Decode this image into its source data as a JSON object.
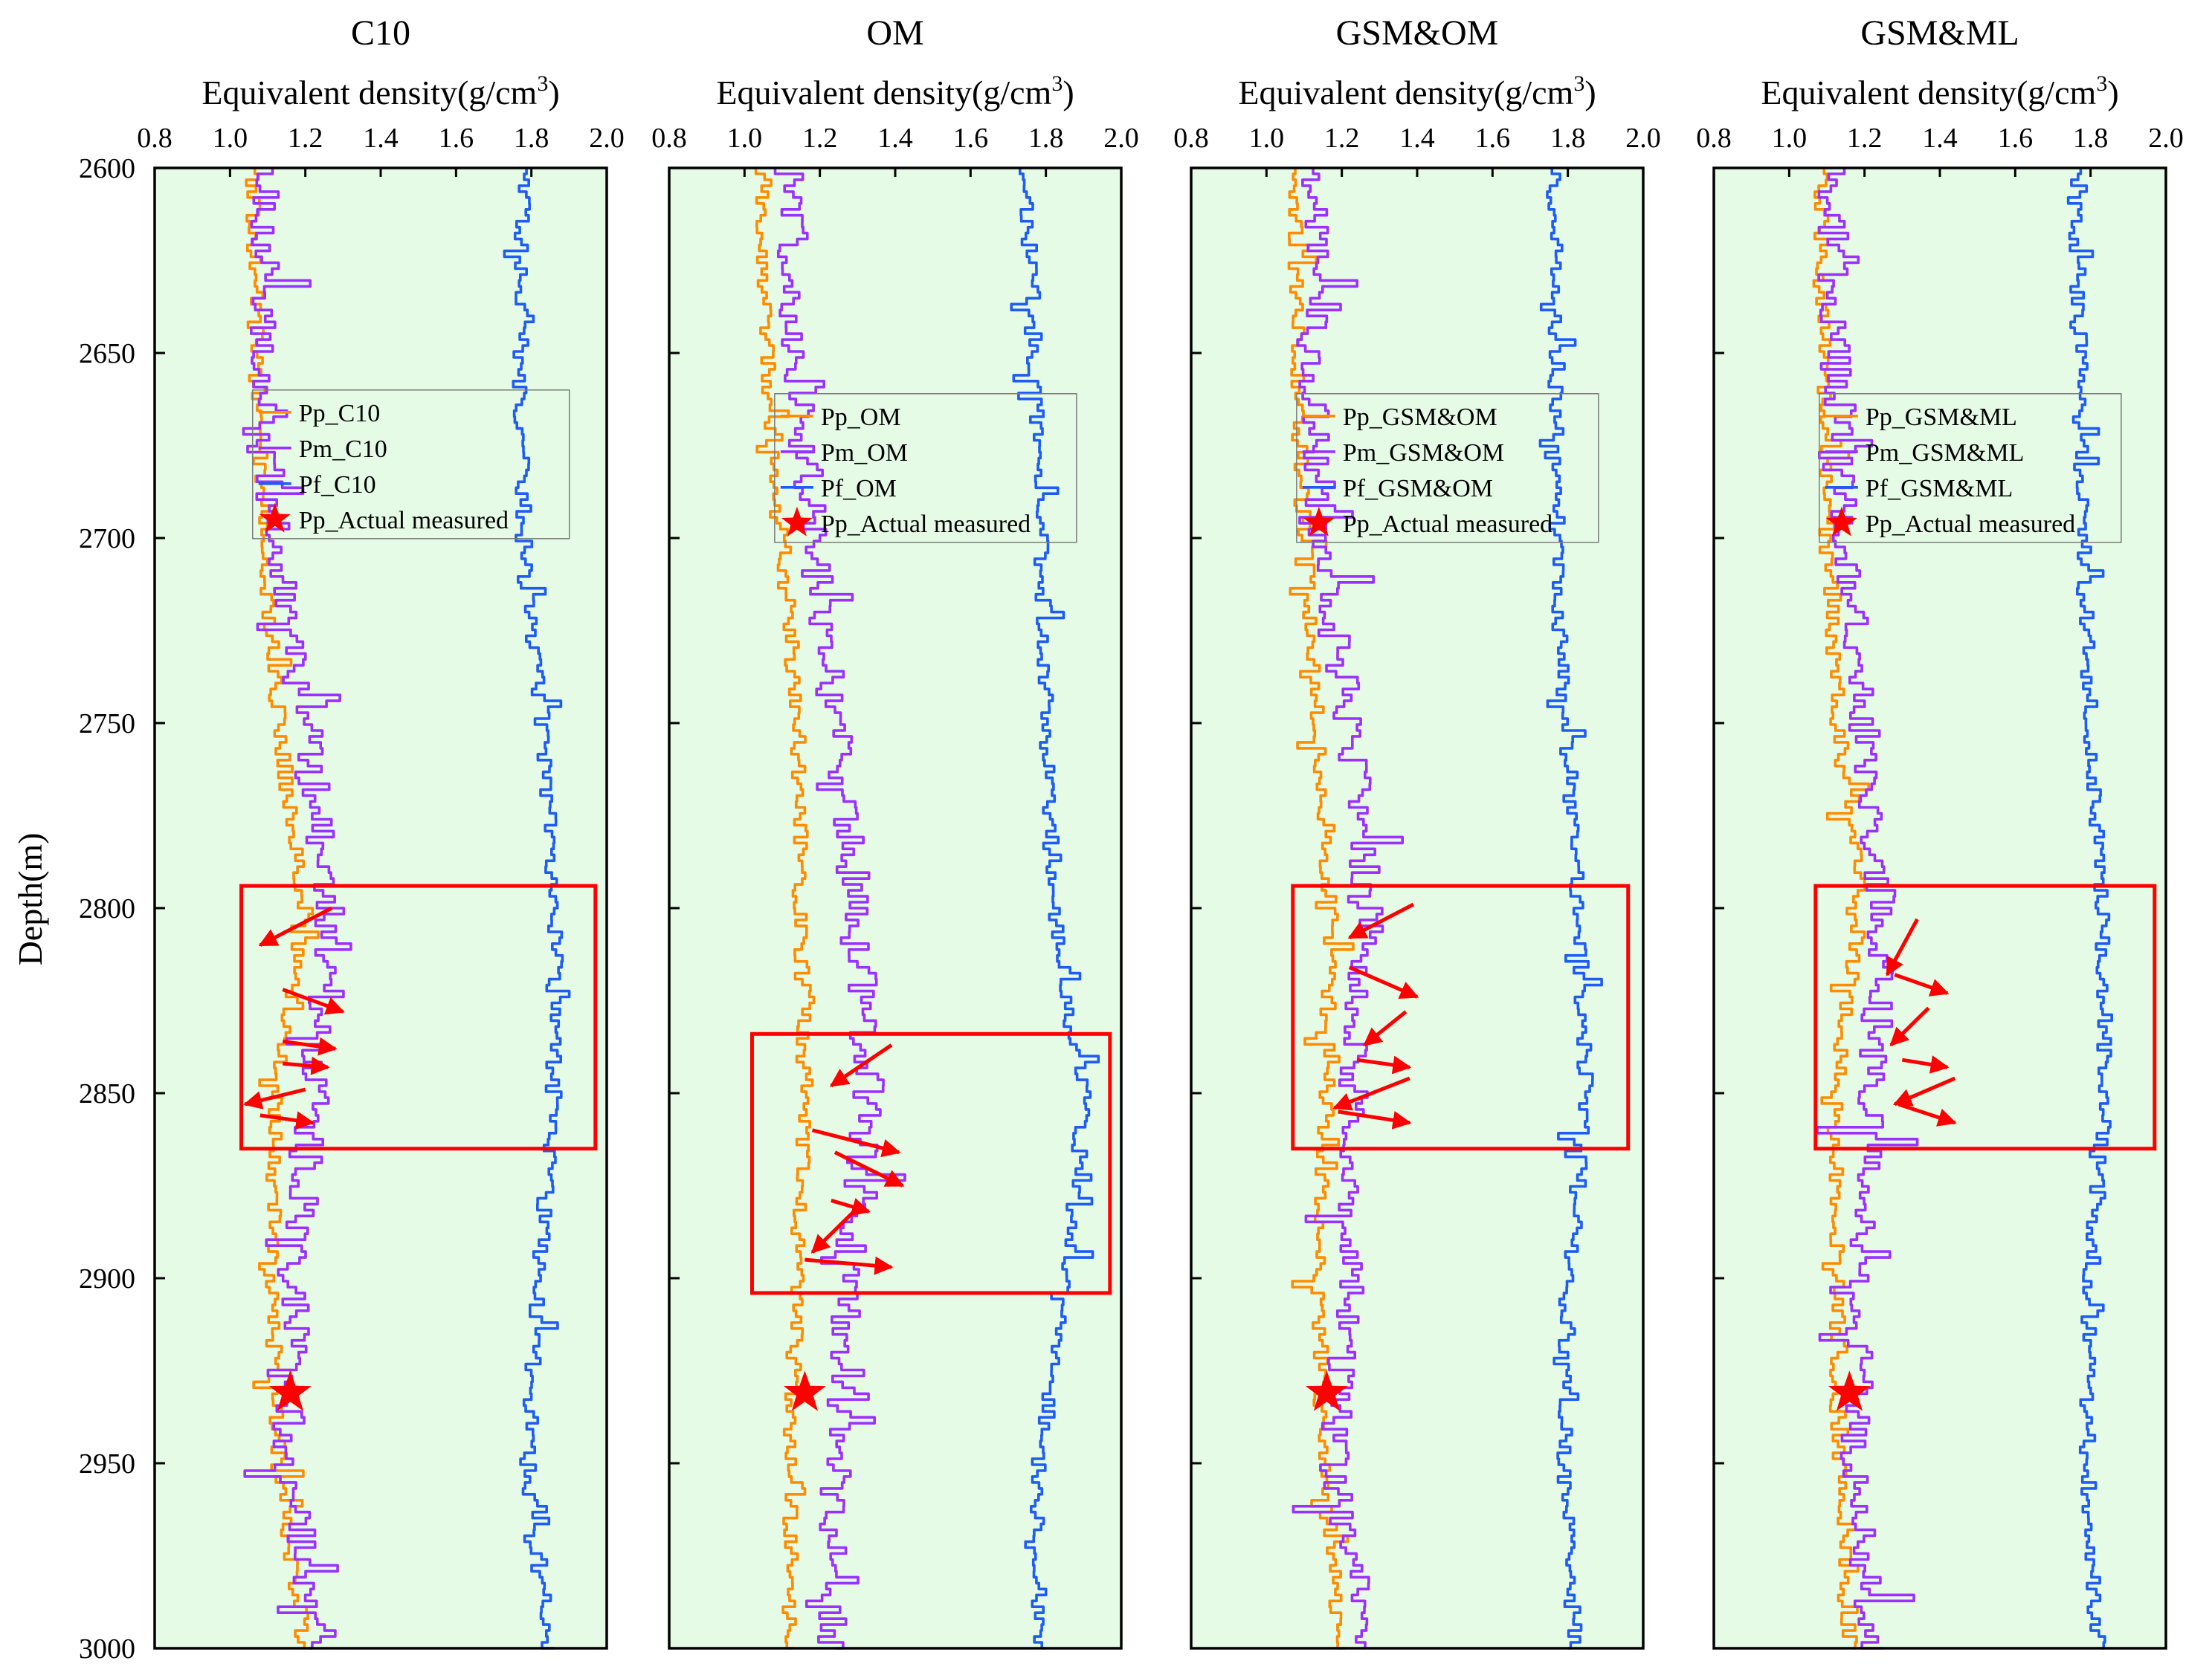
{
  "figure": {
    "ylabel": "Depth(m)",
    "ylim": [
      2600,
      3000
    ],
    "yticks": [
      "2600",
      "2650",
      "2700",
      "2750",
      "2800",
      "2850",
      "2900",
      "2950",
      "3000"
    ],
    "xtitle": "Equivalent density(g/cm",
    "xtitle_sup": "3",
    "xtitle_close": ")",
    "xlim": [
      0.8,
      2.0
    ],
    "xticks": [
      "0.8",
      "1.0",
      "1.2",
      "1.4",
      "1.6",
      "1.8",
      "2.0"
    ]
  },
  "colors": {
    "Pp": "#FF8C00",
    "Pm": "#9B30FF",
    "Pf": "#1E5CF5",
    "marker": "#FF0000",
    "highlight": "#FF0000",
    "panel_bg": "#E6FBE6"
  },
  "chart_data": [
    {
      "type": "line",
      "title": "C10",
      "xlabel": "Equivalent density(g/cm3)",
      "ylabel": "Depth(m)",
      "xlim": [
        0.8,
        2.0
      ],
      "ylim": [
        2600,
        3000
      ],
      "series": [
        {
          "name": "Pp_C10",
          "color": "#FF8C00",
          "depth": [
            2600,
            2650,
            2700,
            2750,
            2800,
            2850,
            2900,
            2950,
            3000
          ],
          "values": [
            1.06,
            1.07,
            1.09,
            1.13,
            1.2,
            1.12,
            1.11,
            1.13,
            1.2
          ]
        },
        {
          "name": "Pm_C10",
          "color": "#9B30FF",
          "depth": [
            2600,
            2650,
            2700,
            2750,
            2800,
            2850,
            2900,
            2950,
            3000
          ],
          "values": [
            1.1,
            1.08,
            1.12,
            1.2,
            1.27,
            1.22,
            1.18,
            1.15,
            1.25
          ]
        },
        {
          "name": "Pf_C10",
          "color": "#1E5CF5",
          "depth": [
            2600,
            2650,
            2700,
            2750,
            2800,
            2850,
            2900,
            2950,
            3000
          ],
          "values": [
            1.78,
            1.77,
            1.78,
            1.83,
            1.86,
            1.86,
            1.82,
            1.79,
            1.85
          ]
        }
      ],
      "legend": [
        "Pp_C10",
        "Pm_C10",
        "Pf_C10",
        "Pp_Actual measured"
      ],
      "legend_position": "upper-middle",
      "measured_point": {
        "name": "Pp_Actual measured",
        "x": 1.16,
        "y": 2931
      },
      "highlight_box": {
        "x": [
          1.03,
          1.97
        ],
        "y": [
          2794,
          2865
        ]
      },
      "arrows": [
        {
          "from": [
            1.27,
            2800
          ],
          "to": [
            1.08,
            2810
          ]
        },
        {
          "from": [
            1.14,
            2822
          ],
          "to": [
            1.3,
            2828
          ]
        },
        {
          "from": [
            1.14,
            2836
          ],
          "to": [
            1.28,
            2838
          ]
        },
        {
          "from": [
            1.14,
            2842
          ],
          "to": [
            1.26,
            2843
          ]
        },
        {
          "from": [
            1.2,
            2849
          ],
          "to": [
            1.04,
            2853
          ]
        },
        {
          "from": [
            1.08,
            2856
          ],
          "to": [
            1.22,
            2858
          ]
        }
      ]
    },
    {
      "type": "line",
      "title": "OM",
      "xlabel": "Equivalent density(g/cm3)",
      "ylabel": "Depth(m)",
      "xlim": [
        0.8,
        2.0
      ],
      "ylim": [
        2600,
        3000
      ],
      "series": [
        {
          "name": "Pp_OM",
          "color": "#FF8C00",
          "depth": [
            2600,
            2650,
            2700,
            2750,
            2800,
            2850,
            2900,
            2950,
            3000
          ],
          "values": [
            1.05,
            1.06,
            1.1,
            1.14,
            1.15,
            1.16,
            1.14,
            1.12,
            1.12
          ]
        },
        {
          "name": "Pm_OM",
          "color": "#9B30FF",
          "depth": [
            2600,
            2650,
            2700,
            2750,
            2800,
            2850,
            2900,
            2950,
            3000
          ],
          "values": [
            1.12,
            1.14,
            1.18,
            1.24,
            1.3,
            1.33,
            1.27,
            1.24,
            1.23
          ]
        },
        {
          "name": "Pf_OM",
          "color": "#1E5CF5",
          "depth": [
            2600,
            2650,
            2700,
            2750,
            2800,
            2850,
            2900,
            2950,
            3000
          ],
          "values": [
            1.75,
            1.77,
            1.79,
            1.8,
            1.82,
            1.9,
            1.86,
            1.78,
            1.78
          ]
        }
      ],
      "legend": [
        "Pp_OM",
        "Pm_OM",
        "Pf_OM",
        "Pp_Actual measured"
      ],
      "legend_position": "upper-right",
      "measured_point": {
        "name": "Pp_Actual measured",
        "x": 1.16,
        "y": 2931
      },
      "highlight_box": {
        "x": [
          1.02,
          1.97
        ],
        "y": [
          2834,
          2904
        ]
      },
      "arrows": [
        {
          "from": [
            1.39,
            2837
          ],
          "to": [
            1.23,
            2848
          ]
        },
        {
          "from": [
            1.18,
            2860
          ],
          "to": [
            1.41,
            2866
          ]
        },
        {
          "from": [
            1.24,
            2866
          ],
          "to": [
            1.42,
            2875
          ]
        },
        {
          "from": [
            1.23,
            2879
          ],
          "to": [
            1.33,
            2882
          ]
        },
        {
          "from": [
            1.31,
            2880
          ],
          "to": [
            1.18,
            2893
          ]
        },
        {
          "from": [
            1.16,
            2895
          ],
          "to": [
            1.39,
            2897
          ]
        }
      ]
    },
    {
      "type": "line",
      "title": "GSM&OM",
      "xlabel": "Equivalent density(g/cm3)",
      "ylabel": "Depth(m)",
      "xlim": [
        0.8,
        2.0
      ],
      "ylim": [
        2600,
        3000
      ],
      "series": [
        {
          "name": "Pp_GSM&OM",
          "color": "#FF8C00",
          "depth": [
            2600,
            2650,
            2700,
            2750,
            2800,
            2850,
            2900,
            2950,
            3000
          ],
          "values": [
            1.08,
            1.08,
            1.1,
            1.14,
            1.17,
            1.16,
            1.14,
            1.15,
            1.2
          ]
        },
        {
          "name": "Pm_GSM&OM",
          "color": "#9B30FF",
          "depth": [
            2600,
            2650,
            2700,
            2750,
            2800,
            2850,
            2900,
            2950,
            3000
          ],
          "values": [
            1.13,
            1.12,
            1.15,
            1.22,
            1.27,
            1.23,
            1.22,
            1.18,
            1.24
          ]
        },
        {
          "name": "Pf_GSM&OM",
          "color": "#1E5CF5",
          "depth": [
            2600,
            2650,
            2700,
            2750,
            2800,
            2850,
            2900,
            2950,
            3000
          ],
          "values": [
            1.76,
            1.77,
            1.77,
            1.79,
            1.83,
            1.85,
            1.8,
            1.79,
            1.82
          ]
        }
      ],
      "legend": [
        "Pp_GSM&OM",
        "Pm_GSM&OM",
        "Pf_GSM&OM",
        "Pp_Actual measured"
      ],
      "legend_position": "upper-right",
      "measured_point": {
        "name": "Pp_Actual measured",
        "x": 1.16,
        "y": 2931
      },
      "highlight_box": {
        "x": [
          1.07,
          1.96
        ],
        "y": [
          2794,
          2865
        ]
      },
      "arrows": [
        {
          "from": [
            1.39,
            2799
          ],
          "to": [
            1.22,
            2808
          ]
        },
        {
          "from": [
            1.22,
            2816
          ],
          "to": [
            1.4,
            2824
          ]
        },
        {
          "from": [
            1.37,
            2828
          ],
          "to": [
            1.26,
            2837
          ]
        },
        {
          "from": [
            1.24,
            2841
          ],
          "to": [
            1.38,
            2843
          ]
        },
        {
          "from": [
            1.38,
            2846
          ],
          "to": [
            1.18,
            2854
          ]
        },
        {
          "from": [
            1.19,
            2855
          ],
          "to": [
            1.38,
            2858
          ]
        }
      ]
    },
    {
      "type": "line",
      "title": "GSM&ML",
      "xlabel": "Equivalent density(g/cm3)",
      "ylabel": "Depth(m)",
      "xlim": [
        0.8,
        2.0
      ],
      "ylim": [
        2600,
        3000
      ],
      "series": [
        {
          "name": "Pp_GSM&ML",
          "color": "#FF8C00",
          "depth": [
            2600,
            2650,
            2700,
            2750,
            2800,
            2850,
            2900,
            2950,
            3000
          ],
          "values": [
            1.08,
            1.09,
            1.1,
            1.13,
            1.19,
            1.12,
            1.13,
            1.13,
            1.16
          ]
        },
        {
          "name": "Pm_GSM&ML",
          "color": "#9B30FF",
          "depth": [
            2600,
            2650,
            2700,
            2750,
            2800,
            2850,
            2900,
            2950,
            3000
          ],
          "values": [
            1.12,
            1.12,
            1.15,
            1.2,
            1.25,
            1.22,
            1.2,
            1.17,
            1.22
          ]
        },
        {
          "name": "Pf_GSM&ML",
          "color": "#1E5CF5",
          "depth": [
            2600,
            2650,
            2700,
            2750,
            2800,
            2850,
            2900,
            2950,
            3000
          ],
          "values": [
            1.76,
            1.77,
            1.78,
            1.8,
            1.83,
            1.84,
            1.8,
            1.79,
            1.82
          ]
        }
      ],
      "legend": [
        "Pp_GSM&ML",
        "Pm_GSM&ML",
        "Pf_GSM&ML",
        "Pp_Actual measured"
      ],
      "legend_position": "upper-right",
      "measured_point": {
        "name": "Pp_Actual measured",
        "x": 1.16,
        "y": 2931
      },
      "highlight_box": {
        "x": [
          1.07,
          1.97
        ],
        "y": [
          2794,
          2865
        ]
      },
      "arrows": [
        {
          "from": [
            1.34,
            2803
          ],
          "to": [
            1.26,
            2818
          ]
        },
        {
          "from": [
            1.28,
            2818
          ],
          "to": [
            1.42,
            2823
          ]
        },
        {
          "from": [
            1.37,
            2827
          ],
          "to": [
            1.27,
            2837
          ]
        },
        {
          "from": [
            1.3,
            2841
          ],
          "to": [
            1.42,
            2843
          ]
        },
        {
          "from": [
            1.44,
            2846
          ],
          "to": [
            1.28,
            2853
          ]
        },
        {
          "from": [
            1.29,
            2853
          ],
          "to": [
            1.44,
            2858
          ]
        }
      ]
    }
  ]
}
